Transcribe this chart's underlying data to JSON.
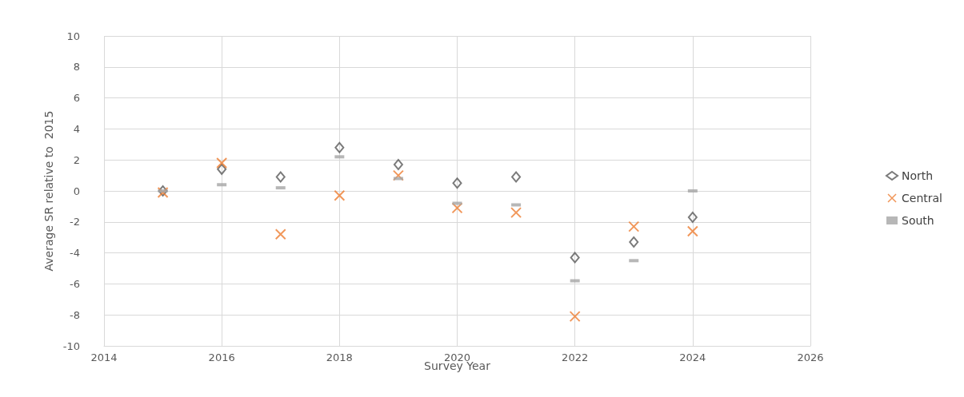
{
  "chart_data": {
    "type": "scatter",
    "xlabel": "Survey Year",
    "ylabel": "Average SR relative to  2015",
    "x": [
      2015,
      2016,
      2017,
      2018,
      2019,
      2020,
      2021,
      2022,
      2023,
      2024
    ],
    "series": [
      {
        "name": "North",
        "color": "#595959",
        "marker": "diamond",
        "values": [
          0,
          1.4,
          0.9,
          2.8,
          1.7,
          0.5,
          0.9,
          -4.3,
          -3.3,
          -1.7
        ]
      },
      {
        "name": "Central",
        "color": "#ed7d31",
        "marker": "cross",
        "values": [
          -0.1,
          1.8,
          -2.8,
          -0.3,
          1.0,
          -1.1,
          -1.4,
          -8.1,
          -2.3,
          -2.6
        ]
      },
      {
        "name": "South",
        "color": "#a5a5a5",
        "marker": "square",
        "values": [
          0,
          0.4,
          0.2,
          2.2,
          0.8,
          -0.8,
          -0.9,
          -5.8,
          -4.5,
          0
        ]
      }
    ],
    "xlim": [
      2014,
      2026
    ],
    "xticks": [
      2014,
      2016,
      2018,
      2020,
      2022,
      2024,
      2026
    ],
    "ylim": [
      -10,
      10
    ],
    "yticks": [
      -10,
      -8,
      -6,
      -4,
      -2,
      0,
      2,
      4,
      6,
      8,
      10
    ],
    "grid": true,
    "legend": "right"
  }
}
